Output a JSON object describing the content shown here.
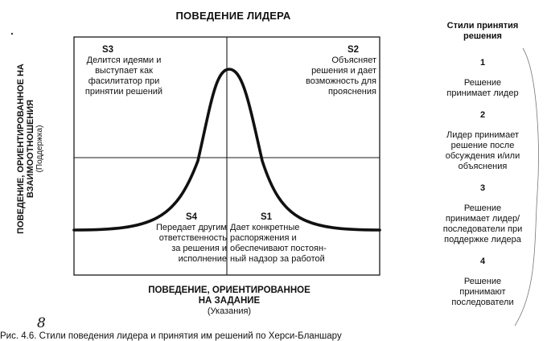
{
  "title": "ПОВЕДЕНИЕ ЛИДЕРА",
  "quadrants": {
    "s3": {
      "code": "S3",
      "text": "Делится идеями и\nвыступает как\nфасилитатор при\nпринятии решений"
    },
    "s2": {
      "code": "S2",
      "text": "Объясняет\nрешения и дает\nвозможность для\nпрояснения"
    },
    "s4": {
      "code": "S4",
      "text": "Передает другим\nответственность\nза решения и\nисполнение"
    },
    "s1": {
      "code": "S1",
      "text": "Дает конкретные\nраспоряжения и\nобеспечивают постоян-\nный надзор за работой"
    }
  },
  "x_axis": {
    "label": "ПОВЕДЕНИЕ, ОРИЕНТИРОВАННОЕ\nНА ЗАДАНИЕ",
    "sublabel": "(Указания)"
  },
  "y_axis": {
    "label": "ПОВЕДЕНИЕ, ОРИЕНТИРОВАННОЕ НА\nВЗАИМООТНОШЕНИЯ",
    "sublabel": "(Поддержка)"
  },
  "decision_styles": {
    "header": "Стили принятия\nрешения",
    "items": [
      {
        "number": "1",
        "text": "Решение\nпринимает лидер"
      },
      {
        "number": "2",
        "text": "Лидер принимает\nрешение после\nобсуждения и/или\nобъяснения"
      },
      {
        "number": "3",
        "text": "Решение\nпринимает лидер/\nпоследователи при\nподдержке лидера"
      },
      {
        "number": "4",
        "text": "Решение\nпринимают\nпоследователи"
      }
    ]
  },
  "handwritten_mark": "8",
  "caption": "Рис. 4.6. Стили поведения лидера и принятия им решений по Херси-Бланшару"
}
